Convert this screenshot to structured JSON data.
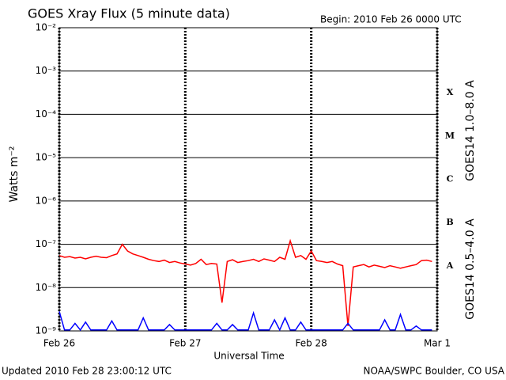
{
  "chart_data": {
    "type": "line",
    "title": "GOES Xray Flux (5 minute data)",
    "subtitle": "Begin:  2010 Feb 26 0000 UTC",
    "xlabel": "Universal Time",
    "ylabel": "Watts m⁻²",
    "footer_left": "Updated 2010 Feb 28 23:00:12 UTC",
    "footer_right": "NOAA/SWPC Boulder, CO USA",
    "flare_classes": [
      "A",
      "B",
      "C",
      "M",
      "X"
    ],
    "log_y": true,
    "grid": true,
    "xlim": [
      0,
      72
    ],
    "xticks": [
      {
        "value": 0,
        "label": "Feb 26"
      },
      {
        "value": 24,
        "label": "Feb 27"
      },
      {
        "value": 48,
        "label": "Feb 28"
      },
      {
        "value": 72,
        "label": "Mar 1"
      }
    ],
    "ylim": [
      1e-09,
      0.01
    ],
    "yticks": [
      {
        "value": 1e-09,
        "label": "10⁻⁹"
      },
      {
        "value": 1e-08,
        "label": "10⁻⁸"
      },
      {
        "value": 1e-07,
        "label": "10⁻⁷"
      },
      {
        "value": 1e-06,
        "label": "10⁻⁶"
      },
      {
        "value": 1e-05,
        "label": "10⁻⁵"
      },
      {
        "value": 0.0001,
        "label": "10⁻⁴"
      },
      {
        "value": 0.001,
        "label": "10⁻³"
      },
      {
        "value": 0.01,
        "label": "10⁻²"
      }
    ],
    "x": [
      0,
      1,
      2,
      3,
      4,
      5,
      6,
      7,
      8,
      9,
      10,
      11,
      12,
      13,
      14,
      15,
      16,
      17,
      18,
      19,
      20,
      21,
      22,
      23,
      24,
      25,
      26,
      27,
      28,
      29,
      30,
      31,
      32,
      33,
      34,
      35,
      36,
      37,
      38,
      39,
      40,
      41,
      42,
      43,
      44,
      45,
      46,
      47,
      48,
      49,
      50,
      51,
      52,
      53,
      54,
      55,
      56,
      57,
      58,
      59,
      60,
      61,
      62,
      63,
      64,
      65,
      66,
      67,
      68,
      69,
      70,
      71
    ],
    "series": [
      {
        "name": "GOES14 1.0–8.0 A",
        "color": "#ff0000",
        "values": [
          5.5e-08,
          5e-08,
          5.2e-08,
          4.8e-08,
          5e-08,
          4.6e-08,
          5e-08,
          5.3e-08,
          5e-08,
          4.9e-08,
          5.5e-08,
          6e-08,
          1e-07,
          7e-08,
          6e-08,
          5.5e-08,
          5e-08,
          4.5e-08,
          4.2e-08,
          4e-08,
          4.3e-08,
          3.8e-08,
          4e-08,
          3.7e-08,
          3.5e-08,
          3.3e-08,
          3.6e-08,
          4.5e-08,
          3.4e-08,
          3.6e-08,
          3.5e-08,
          4.5e-09,
          4e-08,
          4.4e-08,
          3.8e-08,
          4e-08,
          4.2e-08,
          4.5e-08,
          4e-08,
          4.6e-08,
          4.3e-08,
          4e-08,
          5e-08,
          4.5e-08,
          1.2e-07,
          5e-08,
          5.5e-08,
          4.5e-08,
          7e-08,
          4.2e-08,
          4e-08,
          3.8e-08,
          4e-08,
          3.5e-08,
          3.2e-08,
          1.3e-09,
          3e-08,
          3.2e-08,
          3.4e-08,
          3e-08,
          3.3e-08,
          3.1e-08,
          2.9e-08,
          3.2e-08,
          3e-08,
          2.8e-08,
          3e-08,
          3.2e-08,
          3.4e-08,
          4.2e-08,
          4.3e-08,
          4e-08
        ]
      },
      {
        "name": "GOES14 0.5–4.0 A",
        "color": "#0000ff",
        "values": [
          2.8e-09,
          1.05e-09,
          1.05e-09,
          1.5e-09,
          1.05e-09,
          1.6e-09,
          1.05e-09,
          1.05e-09,
          1.05e-09,
          1.05e-09,
          1.7e-09,
          1.05e-09,
          1.05e-09,
          1.05e-09,
          1.05e-09,
          1.05e-09,
          2e-09,
          1.05e-09,
          1.05e-09,
          1.05e-09,
          1.05e-09,
          1.4e-09,
          1.05e-09,
          1.05e-09,
          1.05e-09,
          1.05e-09,
          1.05e-09,
          1.05e-09,
          1.05e-09,
          1.05e-09,
          1.5e-09,
          1.05e-09,
          1.05e-09,
          1.4e-09,
          1.05e-09,
          1.05e-09,
          1.05e-09,
          2.6e-09,
          1.05e-09,
          1.05e-09,
          1.05e-09,
          1.8e-09,
          1.05e-09,
          2e-09,
          1.05e-09,
          1.05e-09,
          1.6e-09,
          1.05e-09,
          1.05e-09,
          1.05e-09,
          1.05e-09,
          1.05e-09,
          1.05e-09,
          1.05e-09,
          1.05e-09,
          1.5e-09,
          1.05e-09,
          1.05e-09,
          1.05e-09,
          1.05e-09,
          1.05e-09,
          1.05e-09,
          1.8e-09,
          1.05e-09,
          1.05e-09,
          2.4e-09,
          1.05e-09,
          1.05e-09,
          1.3e-09,
          1.05e-09,
          1.05e-09,
          1.05e-09
        ]
      }
    ]
  }
}
